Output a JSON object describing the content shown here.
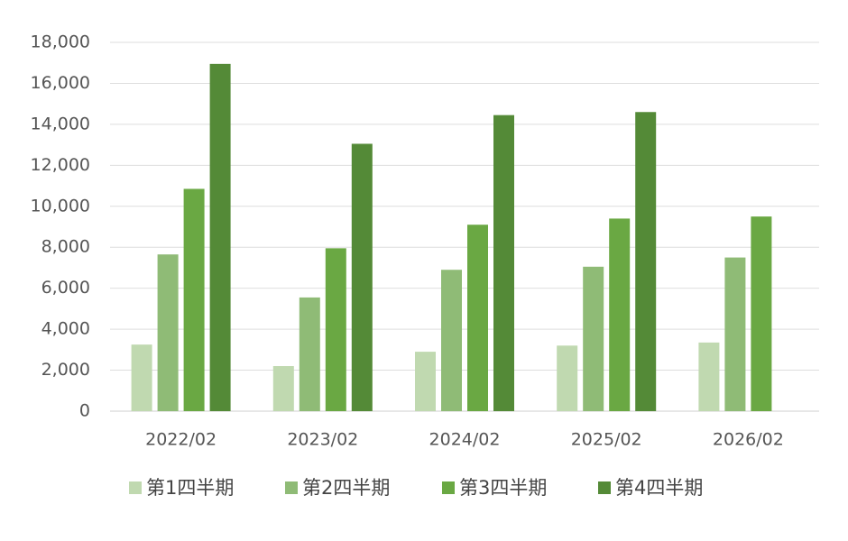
{
  "chart_data": {
    "type": "bar",
    "categories": [
      "2022/02",
      "2023/02",
      "2024/02",
      "2025/02",
      "2026/02"
    ],
    "series": [
      {
        "name": "第1四半期",
        "color": "#c0d9b0",
        "values": [
          3250,
          2200,
          2900,
          3200,
          3350
        ]
      },
      {
        "name": "第2四半期",
        "color": "#8fbb76",
        "values": [
          7650,
          5550,
          6900,
          7050,
          7500
        ]
      },
      {
        "name": "第3四半期",
        "color": "#6aa843",
        "values": [
          10850,
          7950,
          9100,
          9400,
          9500
        ]
      },
      {
        "name": "第4四半期",
        "color": "#548a37",
        "values": [
          16950,
          13050,
          14450,
          14600,
          null
        ]
      }
    ],
    "ylim": [
      0,
      18000
    ],
    "yticks": [
      0,
      {
        "value": 2000,
        "label": "2,000"
      },
      {
        "value": 4000,
        "label": "4,000"
      },
      {
        "value": 6000,
        "label": "6,000"
      },
      {
        "value": 8000,
        "label": "8,000"
      },
      {
        "value": 10000,
        "label": "10,000"
      },
      {
        "value": 12000,
        "label": "12,000"
      },
      {
        "value": 14000,
        "label": "14,000"
      },
      {
        "value": 16000,
        "label": "16,000"
      },
      {
        "value": 18000,
        "label": "18,000"
      }
    ],
    "grid": true,
    "legend": "bottom"
  }
}
